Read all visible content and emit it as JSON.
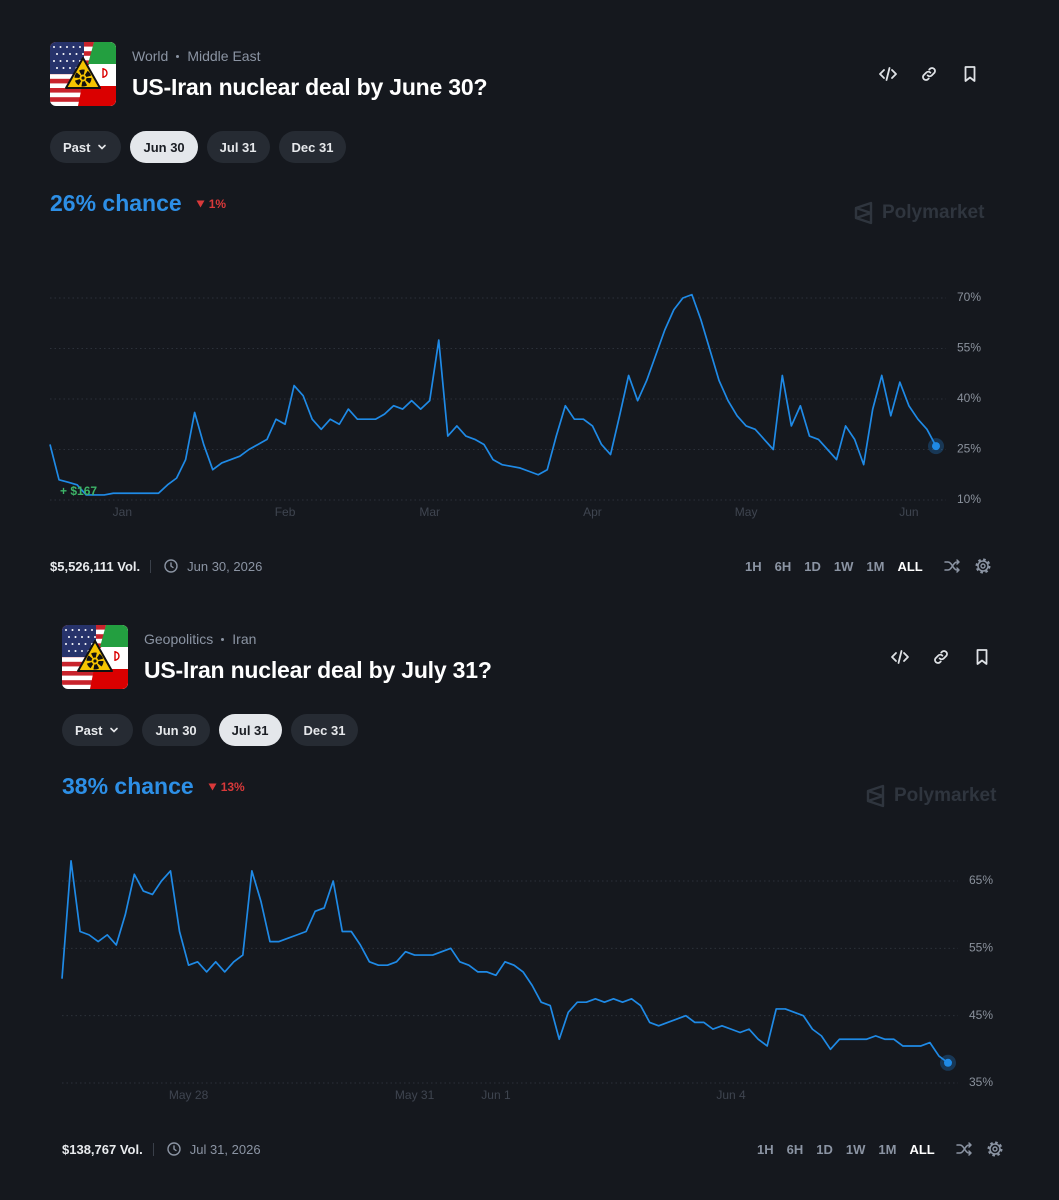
{
  "markets": [
    {
      "breadcrumb": [
        "World",
        "Middle East"
      ],
      "title": "US-Iran nuclear deal by June 30?",
      "tabs": [
        "Past",
        "Jun 30",
        "Jul 31",
        "Dec 31"
      ],
      "active_tab": 1,
      "chance": "26% chance",
      "change": "1%",
      "brand": "Polymarket",
      "volume": "$5,526,111 Vol.",
      "end_date": "Jun 30, 2026",
      "ranges": [
        "1H",
        "6H",
        "1D",
        "1W",
        "1M",
        "ALL"
      ],
      "active_range": 5
    },
    {
      "breadcrumb": [
        "Geopolitics",
        "Iran"
      ],
      "title": "US-Iran nuclear deal by July 31?",
      "tabs": [
        "Past",
        "Jun 30",
        "Jul 31",
        "Dec 31"
      ],
      "active_tab": 2,
      "chance": "38% chance",
      "change": "13%",
      "brand": "Polymarket",
      "volume": "$138,767 Vol.",
      "end_date": "Jul 31, 2026",
      "ranges": [
        "1H",
        "6H",
        "1D",
        "1W",
        "1M",
        "ALL"
      ],
      "active_range": 5
    }
  ],
  "chart_data": [
    {
      "type": "line",
      "categories": [
        null,
        null,
        null,
        null,
        null,
        null,
        null,
        null,
        "Jan",
        null,
        null,
        null,
        null,
        null,
        null,
        null,
        null,
        null,
        null,
        null,
        null,
        null,
        null,
        null,
        null,
        null,
        "Feb",
        null,
        null,
        null,
        null,
        null,
        null,
        null,
        null,
        null,
        null,
        null,
        null,
        null,
        null,
        null,
        "Mar",
        null,
        null,
        null,
        null,
        null,
        null,
        null,
        null,
        null,
        null,
        null,
        null,
        null,
        null,
        null,
        null,
        null,
        "Apr",
        null,
        null,
        null,
        null,
        null,
        null,
        null,
        null,
        null,
        null,
        null,
        null,
        null,
        null,
        null,
        null,
        "May",
        null,
        null,
        null,
        null,
        null,
        null,
        null,
        null,
        null,
        null,
        null,
        null,
        null,
        null,
        null,
        null,
        null,
        "Jun",
        null,
        null,
        null
      ],
      "series": [
        {
          "color": "#1f8ae6",
          "values": [
            26.5,
            16,
            15.3,
            14.5,
            11.5,
            11.5,
            11.5,
            12,
            12,
            12,
            12,
            12,
            12,
            14.5,
            16.5,
            22,
            36,
            26.5,
            19,
            21,
            22,
            23,
            25,
            26.5,
            28,
            34,
            32.5,
            44,
            41,
            34,
            31,
            34,
            32.5,
            37,
            34,
            34,
            34,
            35.5,
            38,
            37,
            39.5,
            37,
            39.5,
            57.5,
            29,
            32,
            29,
            28,
            26.5,
            22,
            20.5,
            20,
            19.5,
            18.5,
            17.5,
            19,
            29,
            38,
            34,
            34,
            32,
            26.5,
            23.5,
            35,
            47,
            39.5,
            45.5,
            53,
            60.5,
            66.5,
            70,
            71,
            63.5,
            54.5,
            45.5,
            39.5,
            35,
            32,
            31,
            28,
            25,
            47,
            32,
            38,
            29,
            28,
            25,
            22,
            32,
            28,
            20.5,
            37,
            47,
            35,
            45,
            38,
            34,
            31,
            26
          ]
        }
      ],
      "ylim": [
        10,
        70
      ],
      "yticks": [
        {
          "value": 10,
          "label": "10%"
        },
        {
          "value": 25,
          "label": "25%"
        },
        {
          "value": 40,
          "label": "40%"
        },
        {
          "value": 55,
          "label": "55%"
        },
        {
          "value": 70,
          "label": "70%"
        }
      ],
      "grid": true,
      "annotation": "+ $167",
      "annotation_color": "#3db468"
    },
    {
      "type": "line",
      "categories": [
        null,
        null,
        null,
        null,
        null,
        null,
        null,
        null,
        null,
        null,
        null,
        null,
        null,
        null,
        "May 28",
        null,
        null,
        null,
        null,
        null,
        null,
        null,
        null,
        null,
        null,
        null,
        null,
        null,
        null,
        null,
        null,
        null,
        null,
        null,
        null,
        null,
        null,
        null,
        null,
        "May 31",
        null,
        null,
        null,
        null,
        null,
        null,
        null,
        null,
        "Jun 1",
        null,
        null,
        null,
        null,
        null,
        null,
        null,
        null,
        null,
        null,
        null,
        null,
        null,
        null,
        null,
        null,
        null,
        null,
        null,
        null,
        null,
        null,
        null,
        null,
        null,
        "Jun 4",
        null,
        null,
        null,
        null,
        null,
        null,
        null,
        null,
        null,
        null,
        null,
        null,
        null,
        null,
        null,
        null,
        null,
        null,
        null,
        null,
        null,
        null,
        null,
        null
      ],
      "series": [
        {
          "color": "#1f8ae6",
          "values": [
            50.5,
            68,
            57.5,
            57,
            56,
            57,
            55.5,
            60,
            66,
            63.5,
            63,
            65,
            66.5,
            57.5,
            52.5,
            53,
            51.5,
            53,
            51.5,
            53,
            54,
            66.5,
            62,
            56,
            56,
            56.5,
            57,
            57.5,
            60.5,
            61,
            65,
            57.5,
            57.5,
            55.5,
            53,
            52.5,
            52.5,
            53,
            54.5,
            54,
            54,
            54,
            54.5,
            55,
            53,
            52.5,
            51.5,
            51.5,
            51,
            53,
            52.5,
            51.5,
            49.5,
            47,
            46.5,
            41.5,
            45.5,
            47,
            47,
            47.5,
            47,
            47.5,
            47,
            47.5,
            46.5,
            44,
            43.5,
            44,
            44.5,
            45,
            44,
            44,
            43,
            43.5,
            43,
            42.5,
            43,
            41.5,
            40.5,
            46,
            46,
            45.5,
            45,
            43,
            42,
            40,
            41.5,
            41.5,
            41.5,
            41.5,
            42,
            41.5,
            41.5,
            40.5,
            40.5,
            40.5,
            41,
            39,
            38
          ]
        }
      ],
      "ylim": [
        35,
        65
      ],
      "yticks": [
        {
          "value": 35,
          "label": "35%"
        },
        {
          "value": 45,
          "label": "45%"
        },
        {
          "value": 55,
          "label": "55%"
        },
        {
          "value": 65,
          "label": "65%"
        }
      ],
      "grid": true
    }
  ]
}
